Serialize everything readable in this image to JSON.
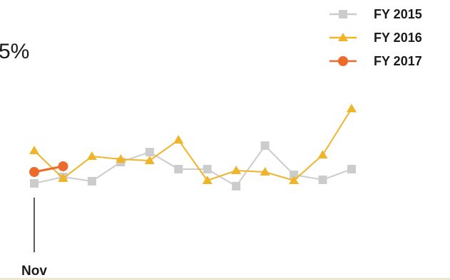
{
  "chart_data": {
    "type": "line",
    "title": "5%",
    "categories": [
      "Nov",
      null,
      null,
      null,
      null,
      null,
      null,
      null,
      null,
      null,
      null,
      null
    ],
    "ylim": [
      0,
      100
    ],
    "legend": "top-right",
    "series": [
      {
        "name": "FY 2015",
        "color": "#cccccc",
        "marker": "square",
        "values": [
          21,
          25.5,
          22.5,
          36,
          43,
          31,
          31,
          19,
          47.5,
          27,
          23.5,
          31
        ]
      },
      {
        "name": "FY 2016",
        "color": "#f0b429",
        "marker": "triangle",
        "values": [
          44,
          24.5,
          40,
          38,
          37,
          51.5,
          23,
          30,
          29,
          23,
          41,
          73.5
        ]
      },
      {
        "name": "FY 2017",
        "color": "#ee6a2c",
        "marker": "circle",
        "values": [
          29,
          33,
          null,
          null,
          null,
          null,
          null,
          null,
          null,
          null,
          null,
          null
        ]
      }
    ]
  }
}
